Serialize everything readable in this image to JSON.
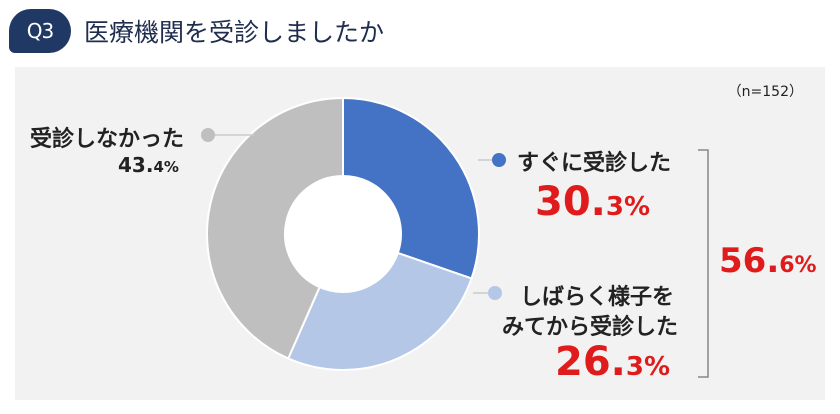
{
  "header": {
    "badge": "Q3",
    "title": "医療機関を受診しましたか",
    "badge_color": "#1f3864"
  },
  "sample": "（n=152）",
  "chart_data": {
    "type": "pie",
    "donut": true,
    "slices": [
      {
        "label": "すぐに受診した",
        "value": 30.3,
        "pct_int": "30.",
        "pct_dec": "3%",
        "color": "#4472c4"
      },
      {
        "label": "しばらく様子をみてから受診した",
        "label_line1": "しばらく様子を",
        "label_line2": "みてから受診した",
        "value": 26.3,
        "pct_int": "26.",
        "pct_dec": "3%",
        "color": "#b4c7e7"
      },
      {
        "label": "受診しなかった",
        "value": 43.4,
        "pct_int": "43.",
        "pct_dec": "4%",
        "color": "#bfbfbf"
      }
    ],
    "bracket_total": {
      "value": 56.6,
      "pct_int": "56.",
      "pct_dec": "6%",
      "color": "#e01b1b"
    }
  }
}
